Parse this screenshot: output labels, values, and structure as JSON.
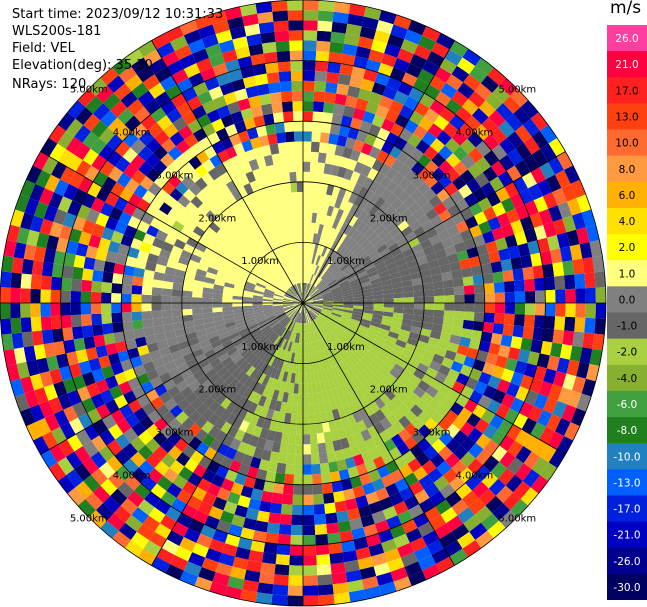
{
  "info": {
    "start_time": "Start time: 2023/09/12 10:31:33",
    "instrument": "WLS200s-181",
    "field": "Field: VEL",
    "elevation": "Elevation(deg): 35.30",
    "nrays": "NRays: 120"
  },
  "colorbar": {
    "unit": "m/s",
    "ticks": [
      "26.0",
      "21.0",
      "17.0",
      "13.0",
      "10.0",
      "8.0",
      "6.0",
      "4.0",
      "2.0",
      "1.0",
      "0.0",
      "-1.0",
      "-2.0",
      "-4.0",
      "-6.0",
      "-8.0",
      "-10.0",
      "-13.0",
      "-17.0",
      "-21.0",
      "-26.0",
      "-30.0"
    ],
    "colors": [
      "#ff3fa0",
      "#ff0040",
      "#ff2020",
      "#ff4010",
      "#ff6a30",
      "#ff9a40",
      "#ffb000",
      "#ffe000",
      "#ffff00",
      "#ffff80",
      "#808080",
      "#666666",
      "#a8d040",
      "#88b030",
      "#40a040",
      "#208020",
      "#2080c0",
      "#0060ff",
      "#0020e0",
      "#0000c0",
      "#000090",
      "#000060"
    ]
  },
  "chart_data": {
    "type": "ppi",
    "field": "VEL",
    "unit": "m/s",
    "nrays": 120,
    "elevation_deg": 35.3,
    "range_ring_labels": [
      "1.00km",
      "2.00km",
      "3.00km",
      "4.00km",
      "5.00km"
    ],
    "max_range_km": 5.0,
    "color_levels": [
      -30.0,
      -26.0,
      -21.0,
      -17.0,
      -13.0,
      -10.0,
      -8.0,
      -6.0,
      -4.0,
      -2.0,
      -1.0,
      0.0,
      1.0,
      2.0,
      4.0,
      6.0,
      8.0,
      10.0,
      13.0,
      17.0,
      21.0,
      26.0
    ]
  }
}
